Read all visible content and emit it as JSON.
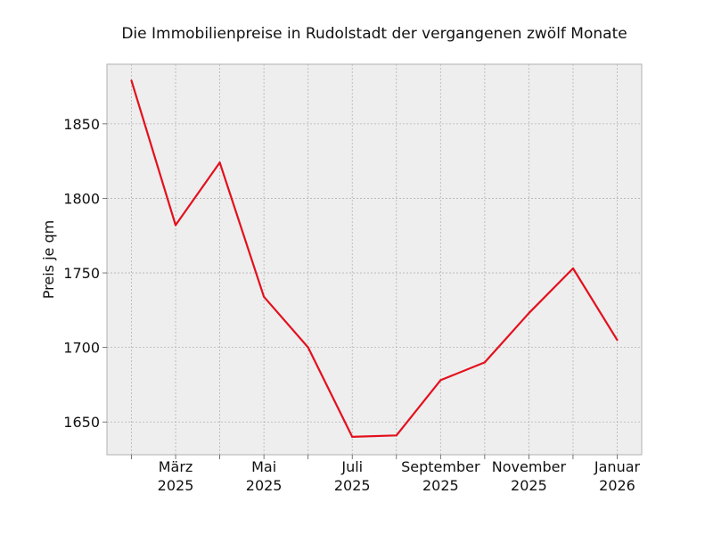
{
  "chart_data": {
    "type": "line",
    "title": "Die Immobilienpreise in Rudolstadt der vergangenen zwölf Monate",
    "xlabel": "",
    "ylabel": "Preis je qm",
    "x": [
      "2025-02",
      "2025-03",
      "2025-04",
      "2025-05",
      "2025-06",
      "2025-07",
      "2025-08",
      "2025-09",
      "2025-10",
      "2025-11",
      "2025-12",
      "2026-01"
    ],
    "series": [
      {
        "name": "",
        "color": "#e3101e",
        "values": [
          1879,
          1782,
          1824,
          1734,
          1700,
          1640,
          1641,
          1678,
          1690,
          1723,
          1753,
          1705
        ]
      }
    ],
    "ylim": [
      1628,
      1890
    ],
    "yticks": [
      1650,
      1700,
      1750,
      1800,
      1850
    ],
    "xticks": [
      {
        "index": 1,
        "line1": "März",
        "line2": "2025"
      },
      {
        "index": 3,
        "line1": "Mai",
        "line2": "2025"
      },
      {
        "index": 5,
        "line1": "Juli",
        "line2": "2025"
      },
      {
        "index": 7,
        "line1": "September",
        "line2": "2025"
      },
      {
        "index": 9,
        "line1": "November",
        "line2": "2025"
      },
      {
        "index": 11,
        "line1": "Januar",
        "line2": "2026"
      }
    ],
    "grid": true,
    "background": "#eeeeee"
  }
}
